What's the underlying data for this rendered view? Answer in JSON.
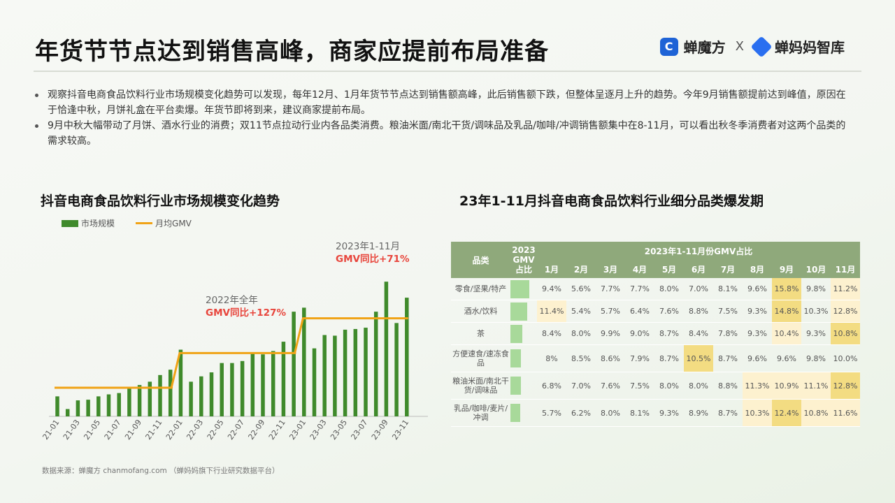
{
  "header": {
    "title": "年货节节点达到销售高峰，商家应提前布局准备",
    "brand1": "蝉魔方",
    "brand_x": "X",
    "brand2": "蝉妈妈智库"
  },
  "bullets": [
    "观察抖音电商食品饮料行业市场规模变化趋势可以发现，每年12月、1月年货节节点达到销售额高峰，此后销售额下跌，但整体呈逐月上升的趋势。今年9月销售额提前达到峰值，原因在于恰逢中秋，月饼礼盒在平台卖爆。年货节即将到来，建议商家提前布局。",
    "9月中秋大幅带动了月饼、酒水行业的消费；双11节点拉动行业内各品类消费。粮油米面/南北干货/调味品及乳品/咖啡/冲调销售额集中在8-11月，可以看出秋冬季消费者对这两个品类的需求较高。"
  ],
  "source": "数据来源：蝉魔方 chanmofang.com （蝉妈妈旗下行业研究数据平台）",
  "colors": {
    "bar": "#3f8a2b",
    "line": "#f0a316",
    "annotation_red": "#e8453c",
    "header_green": "#8fa97b",
    "gmv_share": "#a8d99a",
    "heat_low": "#fdf1cf",
    "heat_high": "#f3dc82"
  },
  "chart_data": [
    {
      "type": "bar",
      "title": "抖音电商食品饮料行业市场规模变化趋势",
      "legend": [
        "市场规模",
        "月均GMV"
      ],
      "x": [
        "21-01",
        "21-02",
        "21-03",
        "21-04",
        "21-05",
        "21-06",
        "21-07",
        "21-08",
        "21-09",
        "21-10",
        "21-11",
        "21-12",
        "22-01",
        "22-02",
        "22-03",
        "22-04",
        "22-05",
        "22-06",
        "22-07",
        "22-08",
        "22-09",
        "22-10",
        "22-11",
        "22-12",
        "23-01",
        "23-02",
        "23-03",
        "23-04",
        "23-05",
        "23-06",
        "23-07",
        "23-08",
        "23-09",
        "23-10",
        "23-11"
      ],
      "x_tick_labels": [
        "21-01",
        "21-03",
        "21-05",
        "21-07",
        "21-09",
        "21-11",
        "22-01",
        "22-03",
        "22-05",
        "22-07",
        "22-09",
        "22-11",
        "23-01",
        "23-03",
        "23-05",
        "23-07",
        "23-09",
        "23-11"
      ],
      "series": [
        {
          "name": "市场规模",
          "type": "bar",
          "values": [
            30,
            11,
            24,
            25,
            30,
            33,
            35,
            43,
            47,
            52,
            62,
            70,
            100,
            52,
            60,
            66,
            80,
            80,
            83,
            95,
            93,
            98,
            112,
            157,
            163,
            102,
            122,
            121,
            130,
            131,
            133,
            157,
            202,
            140,
            178
          ]
        },
        {
          "name": "月均GMV",
          "type": "line",
          "values": [
            43,
            43,
            43,
            43,
            43,
            43,
            43,
            43,
            43,
            43,
            43,
            43,
            95,
            95,
            95,
            95,
            95,
            95,
            95,
            95,
            95,
            95,
            95,
            95,
            147,
            147,
            147,
            147,
            147,
            147,
            147,
            147,
            147,
            147,
            147
          ]
        }
      ],
      "ylim": [
        0,
        220
      ],
      "annotations": [
        {
          "line1": "2022年全年",
          "line2": "GMV同比+127%"
        },
        {
          "line1": "2023年1-11月",
          "line2": "GMV同比+71%"
        }
      ]
    },
    {
      "type": "heatmap",
      "title": "23年1-11月抖音电商食品饮料行业细分品类爆发期",
      "header": {
        "category": "品类",
        "gmv_share_l1": "2023",
        "gmv_share_l2": "GMV",
        "gmv_share_l3": "占比",
        "group": "2023年1-11月份GMV占比"
      },
      "columns": [
        "1月",
        "2月",
        "3月",
        "4月",
        "5月",
        "6月",
        "7月",
        "8月",
        "9月",
        "10月",
        "11月"
      ],
      "rows": [
        {
          "category": "零食/坚果/特产",
          "gmv_share": 0.95,
          "values": [
            "9.4%",
            "5.6%",
            "7.7%",
            "7.7%",
            "8.0%",
            "7.0%",
            "8.1%",
            "9.6%",
            "15.8%",
            "9.8%",
            "11.2%"
          ],
          "levels": [
            0,
            0,
            0,
            0,
            0,
            0,
            0,
            0,
            2,
            0,
            1
          ]
        },
        {
          "category": "酒水/饮料",
          "gmv_share": 0.85,
          "values": [
            "11.4%",
            "5.4%",
            "5.7%",
            "6.4%",
            "7.6%",
            "8.8%",
            "7.5%",
            "9.3%",
            "14.8%",
            "10.3%",
            "12.8%"
          ],
          "levels": [
            1,
            0,
            0,
            0,
            0,
            0,
            0,
            0,
            2,
            0,
            1
          ]
        },
        {
          "category": "茶",
          "gmv_share": 0.6,
          "values": [
            "8.4%",
            "8.0%",
            "9.9%",
            "9.0%",
            "8.7%",
            "8.4%",
            "7.8%",
            "9.3%",
            "10.4%",
            "9.3%",
            "10.8%"
          ],
          "levels": [
            0,
            0,
            0,
            0,
            0,
            0,
            0,
            0,
            1,
            0,
            2
          ]
        },
        {
          "category": "方便速食/速冻食品",
          "gmv_share": 0.55,
          "values": [
            "8%",
            "8.5%",
            "8.6%",
            "7.9%",
            "8.7%",
            "10.5%",
            "8.7%",
            "9.6%",
            "9.6%",
            "9.8%",
            "10.0%"
          ],
          "levels": [
            0,
            0,
            0,
            0,
            0,
            2,
            0,
            0,
            0,
            0,
            0
          ]
        },
        {
          "category": "粮油米面/南北干货/调味品",
          "gmv_share": 0.55,
          "values": [
            "6.8%",
            "7.0%",
            "7.6%",
            "7.5%",
            "8.0%",
            "8.0%",
            "8.8%",
            "11.3%",
            "10.9%",
            "11.1%",
            "12.8%"
          ],
          "levels": [
            0,
            0,
            0,
            0,
            0,
            0,
            0,
            1,
            1,
            1,
            2
          ]
        },
        {
          "category": "乳品/咖啡/麦片/冲调",
          "gmv_share": 0.5,
          "values": [
            "5.7%",
            "6.2%",
            "8.0%",
            "8.1%",
            "9.3%",
            "8.9%",
            "8.7%",
            "10.3%",
            "12.4%",
            "10.8%",
            "11.6%"
          ],
          "levels": [
            0,
            0,
            0,
            0,
            0,
            0,
            0,
            1,
            2,
            1,
            1
          ]
        }
      ]
    }
  ]
}
